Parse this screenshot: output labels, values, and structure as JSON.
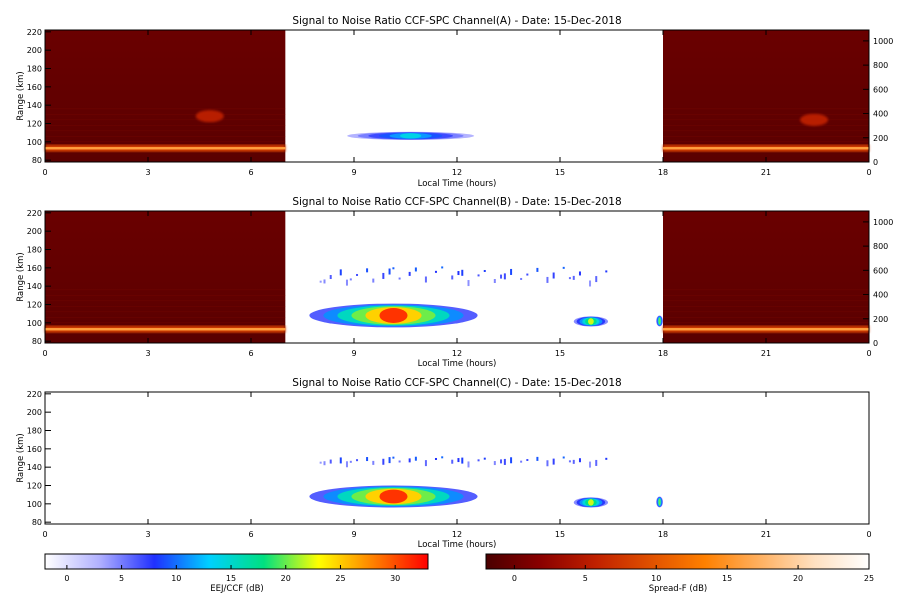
{
  "chart_data": [
    {
      "type": "heatmap",
      "title": "Signal to Noise Ratio CCF-SPC Channel(A) - Date: 15-Dec-2018",
      "xlabel": "Local Time (hours)",
      "ylabel": "Range (km)",
      "xlim": [
        0,
        24
      ],
      "ylim": [
        78,
        222
      ],
      "x_ticks": [
        "0",
        "3",
        "6",
        "9",
        "12",
        "15",
        "18",
        "21",
        "0"
      ],
      "y_ticks": [
        80,
        100,
        120,
        140,
        160,
        180,
        200,
        220
      ],
      "right_axis_ticks": [
        0,
        200,
        400,
        600,
        800,
        1000
      ],
      "night_spans": [
        [
          0,
          7
        ],
        [
          18,
          24
        ]
      ],
      "features": [
        {
          "kind": "layer",
          "x": [
            0,
            7
          ],
          "y": 93,
          "scale": "spread_f"
        },
        {
          "kind": "layer",
          "x": [
            18,
            24
          ],
          "y": 93,
          "scale": "spread_f"
        },
        {
          "kind": "echo",
          "x": [
            8.8,
            12.5
          ],
          "y": [
            102,
            111
          ],
          "peak": 14,
          "scale": "eej"
        },
        {
          "kind": "spot",
          "x": 4.8,
          "y": 128,
          "scale": "spread_f"
        },
        {
          "kind": "spot",
          "x": 22.4,
          "y": 124,
          "scale": "spread_f"
        }
      ]
    },
    {
      "type": "heatmap",
      "title": "Signal to Noise Ratio CCF-SPC Channel(B) - Date: 15-Dec-2018",
      "xlabel": "Local Time (hours)",
      "ylabel": "Range (km)",
      "xlim": [
        0,
        24
      ],
      "ylim": [
        78,
        222
      ],
      "x_ticks": [
        "0",
        "3",
        "6",
        "9",
        "12",
        "15",
        "18",
        "21",
        "0"
      ],
      "y_ticks": [
        80,
        100,
        120,
        140,
        160,
        180,
        200,
        220
      ],
      "right_axis_ticks": [
        0,
        200,
        400,
        600,
        800,
        1000
      ],
      "night_spans": [
        [
          0,
          7
        ],
        [
          18,
          24
        ]
      ],
      "features": [
        {
          "kind": "layer",
          "x": [
            0,
            7
          ],
          "y": 93,
          "scale": "spread_f"
        },
        {
          "kind": "layer",
          "x": [
            18,
            24
          ],
          "y": 93,
          "scale": "spread_f"
        },
        {
          "kind": "echo",
          "x": [
            7.7,
            12.6
          ],
          "y": [
            95,
            121
          ],
          "peak": 31,
          "scale": "eej"
        },
        {
          "kind": "echo",
          "x": [
            15.4,
            16.4
          ],
          "y": [
            96,
            107
          ],
          "peak": 22,
          "scale": "eej"
        },
        {
          "kind": "echo",
          "x": [
            17.8,
            18.0
          ],
          "y": [
            96,
            108
          ],
          "peak": 20,
          "scale": "eej"
        },
        {
          "kind": "scatter",
          "x": [
            8,
            16.5
          ],
          "y": [
            146,
            162
          ],
          "peak": 10,
          "scale": "eej"
        }
      ]
    },
    {
      "type": "heatmap",
      "title": "Signal to Noise Ratio CCF-SPC Channel(C) - Date: 15-Dec-2018",
      "xlabel": "Local Time (hours)",
      "ylabel": "Range (km)",
      "xlim": [
        0,
        24
      ],
      "ylim": [
        78,
        222
      ],
      "x_ticks": [
        "0",
        "3",
        "6",
        "9",
        "12",
        "15",
        "18",
        "21",
        "0"
      ],
      "y_ticks": [
        80,
        100,
        120,
        140,
        160,
        180,
        200,
        220
      ],
      "night_spans": [],
      "features": [
        {
          "kind": "echo",
          "x": [
            7.7,
            12.6
          ],
          "y": [
            96,
            120
          ],
          "peak": 31,
          "scale": "eej"
        },
        {
          "kind": "echo",
          "x": [
            15.4,
            16.4
          ],
          "y": [
            96,
            107
          ],
          "peak": 22,
          "scale": "eej"
        },
        {
          "kind": "echo",
          "x": [
            17.8,
            18.0
          ],
          "y": [
            96,
            108
          ],
          "peak": 20,
          "scale": "eej"
        },
        {
          "kind": "scatter",
          "x": [
            8,
            16.5
          ],
          "y": [
            146,
            152
          ],
          "peak": 10,
          "scale": "eej"
        }
      ]
    }
  ],
  "colorbars": [
    {
      "label": "EEJ/CCF (dB)",
      "ticks": [
        "0",
        "5",
        "10",
        "15",
        "20",
        "25",
        "30"
      ],
      "range": [
        -2,
        33
      ],
      "colors": [
        "#ffffff",
        "#b0b0ff",
        "#2030ff",
        "#00d0ff",
        "#00e080",
        "#ffff00",
        "#ff8000",
        "#ff0000"
      ]
    },
    {
      "label": "Spread-F (dB)",
      "ticks": [
        "0",
        "5",
        "10",
        "15",
        "20",
        "25"
      ],
      "range": [
        -2,
        25
      ],
      "colors": [
        "#4a0000",
        "#8a0000",
        "#c02000",
        "#e05000",
        "#ff8000",
        "#ffb060",
        "#ffe0c0",
        "#ffffff"
      ]
    }
  ]
}
